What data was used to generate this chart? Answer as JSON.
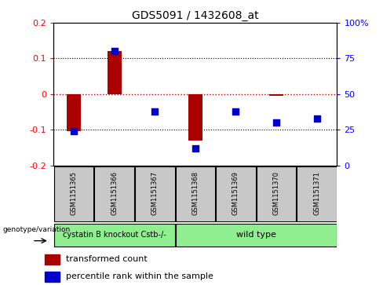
{
  "title": "GDS5091 / 1432608_at",
  "samples": [
    "GSM1151365",
    "GSM1151366",
    "GSM1151367",
    "GSM1151368",
    "GSM1151369",
    "GSM1151370",
    "GSM1151371"
  ],
  "red_values": [
    -0.105,
    0.12,
    0.0,
    -0.13,
    0.0,
    -0.005,
    0.0
  ],
  "blue_values_pct": [
    24,
    80,
    38,
    12,
    38,
    30,
    33
  ],
  "ylim": [
    -0.2,
    0.2
  ],
  "y2lim": [
    0,
    100
  ],
  "yticks": [
    -0.2,
    -0.1,
    0.0,
    0.1,
    0.2
  ],
  "y2ticks": [
    0,
    25,
    50,
    75,
    100
  ],
  "ytick_labels": [
    "-0.2",
    "-0.1",
    "0",
    "0.1",
    "0.2"
  ],
  "y2tick_labels": [
    "0",
    "25",
    "50",
    "75",
    "100%"
  ],
  "bar_color": "#AA0000",
  "dot_color": "#0000CC",
  "genotype_label": "genotype/variation",
  "legend_red": "transformed count",
  "legend_blue": "percentile rank within the sample",
  "zero_line_color": "#CC0000",
  "bar_width": 0.35,
  "dot_size": 30,
  "group1_label": "cystatin B knockout Cstb-/-",
  "group1_n": 3,
  "group2_label": "wild type",
  "group2_n": 4,
  "group_color": "#90EE90",
  "sample_box_color": "#C8C8C8",
  "title_fontsize": 10,
  "axis_fontsize": 8,
  "sample_fontsize": 6,
  "legend_fontsize": 8,
  "group_fontsize": 7
}
